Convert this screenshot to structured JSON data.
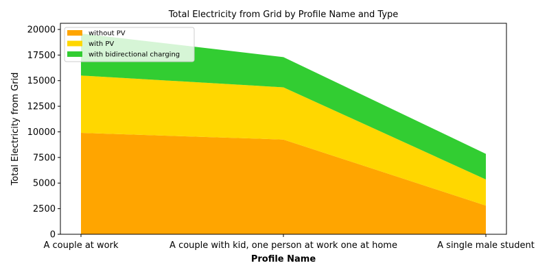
{
  "chart_data": {
    "type": "area",
    "stacked": true,
    "title": "Total Electricity from Grid by Profile Name and Type",
    "xlabel": "Profile Name",
    "ylabel": "Total Electricity from Grid",
    "categories": [
      "A couple at work",
      "A couple with kid, one person at work one at home",
      "A single male student"
    ],
    "series": [
      {
        "name": "without PV",
        "values": [
          9900,
          9250,
          2800
        ],
        "color": "#FFA500"
      },
      {
        "name": "with PV",
        "values": [
          5600,
          5100,
          2550
        ],
        "color": "#FFD700"
      },
      {
        "name": "with bidirectional charging",
        "values": [
          4100,
          2950,
          2500
        ],
        "color": "#32CD32"
      }
    ],
    "ylim": [
      0,
      20600
    ],
    "yticks": [
      0,
      2500,
      5000,
      7500,
      10000,
      12500,
      15000,
      17500,
      20000
    ],
    "grid": false,
    "legend_position": "top-left"
  }
}
